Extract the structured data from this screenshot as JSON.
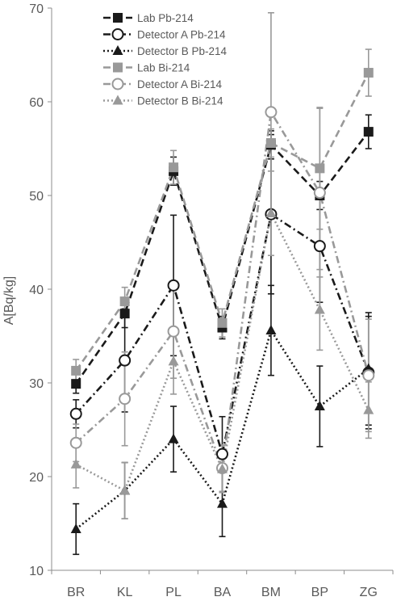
{
  "chart_data": {
    "type": "line",
    "title": "",
    "xlabel": "",
    "ylabel": "A[Bq/kg]",
    "categories": [
      "BR",
      "KL",
      "PL",
      "BA",
      "BM",
      "BP",
      "ZG"
    ],
    "ylim": [
      10,
      70
    ],
    "yticks": [
      10,
      20,
      30,
      40,
      50,
      60,
      70
    ],
    "grid": false,
    "legend_position": "top-left",
    "series": [
      {
        "name": "Lab Pb-214",
        "color": "#1a1a1a",
        "dash": "longdash",
        "marker": "square-filled",
        "values": [
          29.9,
          37.4,
          52.6,
          35.9,
          55.4,
          50.0,
          56.8
        ],
        "err_low": [
          1.0,
          1.5,
          1.5,
          1.2,
          1.5,
          1.5,
          1.8
        ],
        "err_high": [
          1.0,
          1.5,
          1.5,
          1.2,
          1.5,
          1.5,
          1.8
        ]
      },
      {
        "name": "Detector A Pb-214",
        "color": "#1a1a1a",
        "dash": "dashdot",
        "marker": "circle-open",
        "values": [
          26.7,
          32.4,
          40.4,
          22.4,
          48.0,
          44.6,
          31.1
        ],
        "err_low": [
          1.5,
          5.5,
          7.5,
          4.0,
          8.5,
          6.0,
          6.0
        ],
        "err_high": [
          1.5,
          5.5,
          7.5,
          4.0,
          8.5,
          6.0,
          6.0
        ]
      },
      {
        "name": "Detector B Pb-214",
        "color": "#1a1a1a",
        "dash": "dotted",
        "marker": "triangle-filled",
        "values": [
          14.4,
          18.5,
          24.0,
          17.1,
          35.6,
          27.5,
          31.5
        ],
        "err_low": [
          2.7,
          3.0,
          3.5,
          3.5,
          4.8,
          4.3,
          6.0
        ],
        "err_high": [
          2.7,
          3.0,
          3.5,
          3.5,
          4.8,
          4.3,
          6.0
        ]
      },
      {
        "name": "Lab Bi-214",
        "color": "#999999",
        "dash": "longdash",
        "marker": "square-filled",
        "values": [
          31.3,
          38.7,
          53.0,
          36.4,
          55.6,
          52.9,
          63.1
        ],
        "err_low": [
          1.2,
          1.5,
          1.8,
          1.5,
          1.5,
          6.5,
          2.5
        ],
        "err_high": [
          1.2,
          1.5,
          1.8,
          1.5,
          1.5,
          6.5,
          2.5
        ]
      },
      {
        "name": "Detector A Bi-214",
        "color": "#999999",
        "dash": "dashdot",
        "marker": "circle-open",
        "values": [
          23.6,
          28.3,
          35.5,
          20.9,
          58.9,
          50.3,
          30.8
        ],
        "err_low": [
          2.0,
          5.0,
          5.0,
          2.5,
          10.6,
          9.0,
          6.0
        ],
        "err_high": [
          2.0,
          5.0,
          5.0,
          2.5,
          10.6,
          9.0,
          6.0
        ]
      },
      {
        "name": "Detector B Bi-214",
        "color": "#999999",
        "dash": "dotted",
        "marker": "triangle-filled",
        "values": [
          21.3,
          18.5,
          32.3,
          20.8,
          48.1,
          37.8,
          27.1
        ],
        "err_low": [
          2.5,
          3.0,
          3.5,
          2.5,
          4.5,
          4.3,
          3.0
        ],
        "err_high": [
          2.5,
          3.0,
          3.5,
          2.5,
          4.5,
          4.3,
          3.0
        ]
      }
    ]
  }
}
